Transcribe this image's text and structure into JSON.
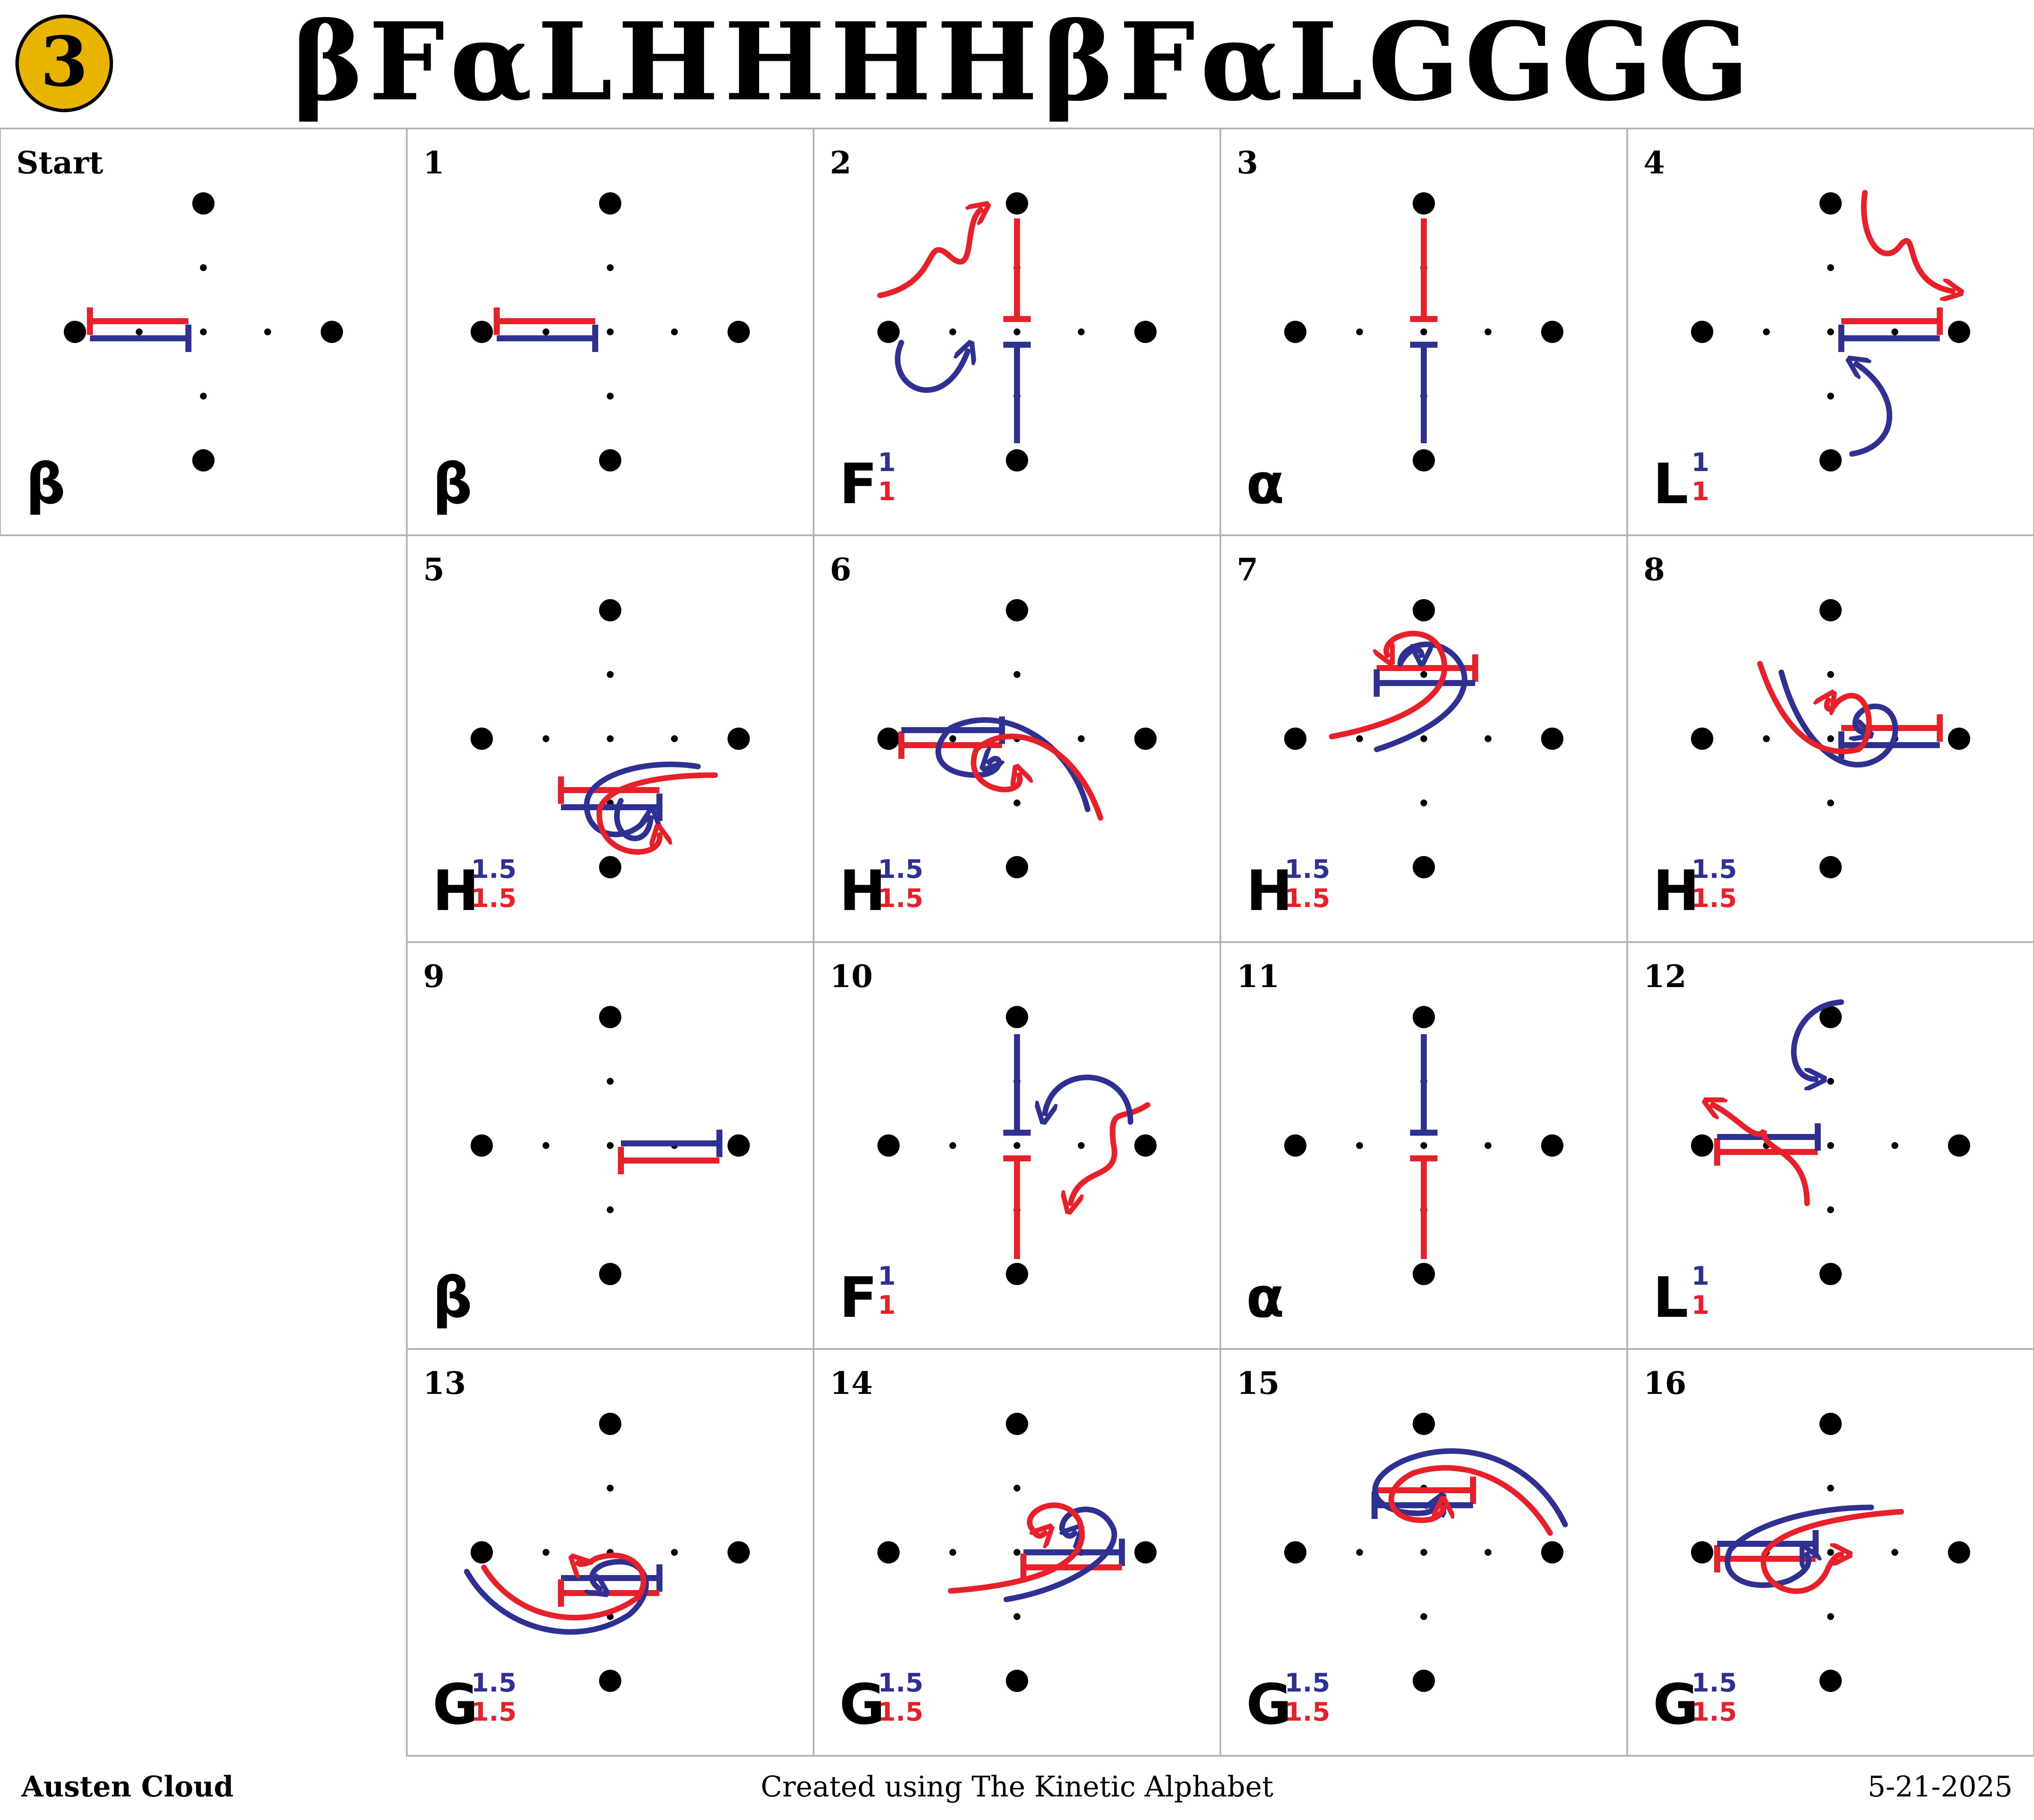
{
  "header": {
    "badge_number": "3",
    "title": "βFαLHHHHβFαLGGGG"
  },
  "colors": {
    "red": "#e8202a",
    "blue": "#2e3192",
    "badge_fill": "#e8b400",
    "grid_line": "#b3b3b3"
  },
  "cells": [
    {
      "label": "Start",
      "glyph": "β",
      "sup_top": "",
      "sup_bottom": ""
    },
    {
      "label": "1",
      "glyph": "β",
      "sup_top": "",
      "sup_bottom": ""
    },
    {
      "label": "2",
      "glyph": "F",
      "sup_top": "1",
      "sup_bottom": "1"
    },
    {
      "label": "3",
      "glyph": "α",
      "sup_top": "",
      "sup_bottom": ""
    },
    {
      "label": "4",
      "glyph": "L",
      "sup_top": "1",
      "sup_bottom": "1"
    },
    {
      "label": "5",
      "glyph": "H",
      "sup_top": "1.5",
      "sup_bottom": "1.5"
    },
    {
      "label": "6",
      "glyph": "H",
      "sup_top": "1.5",
      "sup_bottom": "1.5"
    },
    {
      "label": "7",
      "glyph": "H",
      "sup_top": "1.5",
      "sup_bottom": "1.5"
    },
    {
      "label": "8",
      "glyph": "H",
      "sup_top": "1.5",
      "sup_bottom": "1.5"
    },
    {
      "label": "9",
      "glyph": "β",
      "sup_top": "",
      "sup_bottom": ""
    },
    {
      "label": "10",
      "glyph": "F",
      "sup_top": "1",
      "sup_bottom": "1"
    },
    {
      "label": "11",
      "glyph": "α",
      "sup_top": "",
      "sup_bottom": ""
    },
    {
      "label": "12",
      "glyph": "L",
      "sup_top": "1",
      "sup_bottom": "1"
    },
    {
      "label": "13",
      "glyph": "G",
      "sup_top": "1.5",
      "sup_bottom": "1.5"
    },
    {
      "label": "14",
      "glyph": "G",
      "sup_top": "1.5",
      "sup_bottom": "1.5"
    },
    {
      "label": "15",
      "glyph": "G",
      "sup_top": "1.5",
      "sup_bottom": "1.5"
    },
    {
      "label": "16",
      "glyph": "G",
      "sup_top": "1.5",
      "sup_bottom": "1.5"
    }
  ],
  "footer": {
    "author": "Austen Cloud",
    "credit": "Created using The Kinetic Alphabet",
    "date": "5-21-2025"
  }
}
